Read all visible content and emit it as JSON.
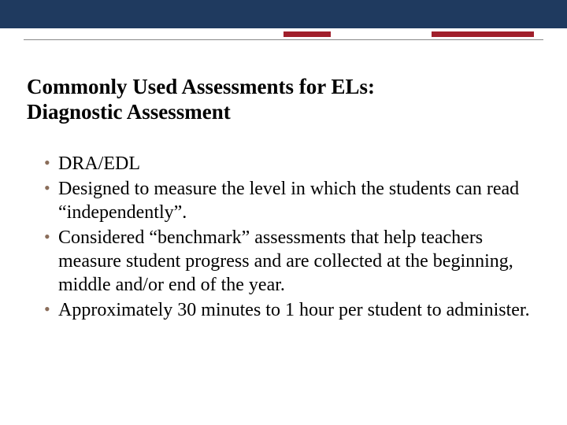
{
  "colors": {
    "top_bar": "#1f3a5f",
    "accent": "#a01f2b",
    "thin_line": "#888888",
    "bullet": "#8a6d5a",
    "text": "#000000",
    "background": "#ffffff"
  },
  "title": {
    "line1": "Commonly Used Assessments for ELs:",
    "line2": "Diagnostic Assessment",
    "fontsize": 27,
    "bold": true
  },
  "bullets": [
    "DRA/EDL",
    "Designed to measure the level in which the students can read “independently”.",
    "Considered “benchmark” assessments that help teachers measure student progress and are collected  at the beginning, middle and/or end of the year.",
    "Approximately 30 minutes to 1 hour per student to administer."
  ],
  "bullet_fontsize": 24
}
